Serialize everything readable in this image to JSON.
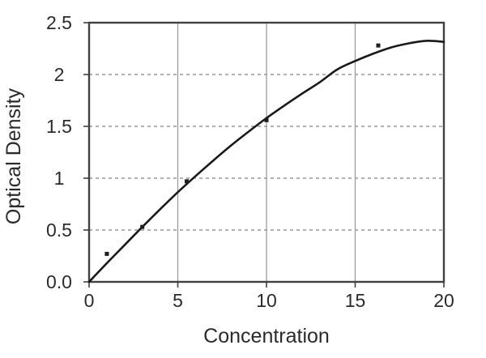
{
  "chart_data": {
    "type": "line",
    "title": "",
    "xlabel": "Concentration",
    "ylabel": "Optical Density",
    "xlim": [
      0,
      20
    ],
    "ylim": [
      0,
      2.5
    ],
    "x_ticks": [
      0,
      5,
      10,
      15,
      20
    ],
    "x_tick_labels": [
      "0",
      "5",
      "10",
      "15",
      "20"
    ],
    "y_ticks": [
      0,
      0.5,
      1,
      1.5,
      2,
      2.5
    ],
    "y_tick_labels": [
      "0.0",
      "0.5",
      "1",
      "1.5",
      "2",
      "2.5"
    ],
    "grid": {
      "vertical_style": "solid",
      "horizontal_style": "dashed",
      "legend": "none"
    },
    "series": [
      {
        "name": "fitted-curve",
        "type": "line",
        "points": [
          [
            0,
            0.0
          ],
          [
            1,
            0.18
          ],
          [
            2,
            0.355
          ],
          [
            3,
            0.53
          ],
          [
            4,
            0.7
          ],
          [
            5,
            0.865
          ],
          [
            6,
            1.02
          ],
          [
            7,
            1.17
          ],
          [
            8,
            1.315
          ],
          [
            9,
            1.45
          ],
          [
            10,
            1.58
          ],
          [
            11,
            1.7
          ],
          [
            12,
            1.815
          ],
          [
            13,
            1.925
          ],
          [
            14,
            2.05
          ],
          [
            15,
            2.13
          ],
          [
            16,
            2.2
          ],
          [
            17,
            2.26
          ],
          [
            18,
            2.3
          ],
          [
            19,
            2.325
          ],
          [
            20,
            2.315
          ]
        ]
      },
      {
        "name": "data-points",
        "type": "scatter",
        "marker": "square",
        "points": [
          [
            1,
            0.27
          ],
          [
            3,
            0.53
          ],
          [
            5.5,
            0.97
          ],
          [
            10,
            1.56
          ],
          [
            16.3,
            2.28
          ]
        ]
      }
    ],
    "colors": {
      "curve": "#1a1a1a",
      "marker": "#1f1f1f",
      "grid": "#979797",
      "axis_frame": "#414141",
      "text": "#2b2b2b",
      "background": "#ffffff"
    }
  }
}
